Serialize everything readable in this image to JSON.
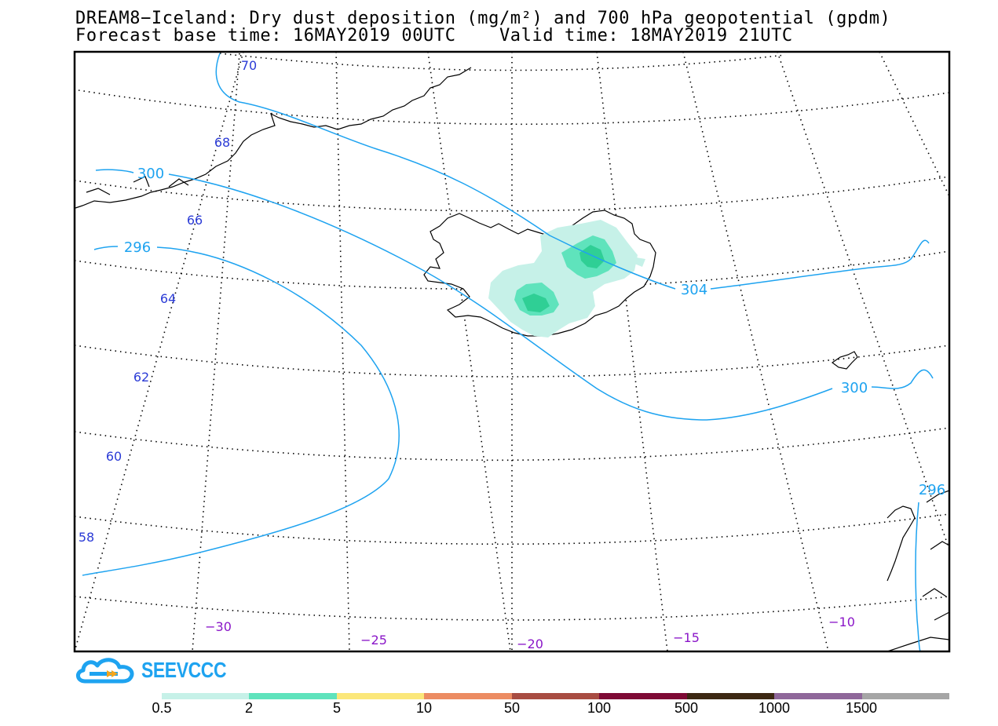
{
  "title": {
    "line1": "DREAM8−Iceland: Dry dust deposition (mg/m²) and 700 hPa geopotential (gpdm)",
    "line2": "Forecast base time: 16MAY2019 00UTC    Valid time: 18MAY2019 21UTC"
  },
  "map": {
    "lat_labels": [
      "70",
      "68",
      "66",
      "64",
      "62",
      "60",
      "58"
    ],
    "lon_labels": [
      "−30",
      "−25",
      "−20",
      "−15",
      "−10"
    ],
    "geopotential_contours": [
      "300",
      "296",
      "304",
      "300",
      "296"
    ],
    "contour_color": "#1ea3f0",
    "deposition_shades": {
      "light": "#c6f1e8",
      "mid": "#5fe3bc",
      "dark": "#2fcf95"
    }
  },
  "logo": {
    "text": "SEEVCCC",
    "color": "#1ea3f0",
    "icon": "cloud-arrow-icon"
  },
  "legend": {
    "colors": [
      "#c6f1e8",
      "#5fe3bc",
      "#fbe77a",
      "#ec8c62",
      "#a84c42",
      "#7e0a35",
      "#3d2813",
      "#8f679a",
      "#a6a6a6"
    ],
    "labels": [
      "0.5",
      "2",
      "5",
      "10",
      "50",
      "100",
      "500",
      "1000",
      "1500"
    ]
  }
}
